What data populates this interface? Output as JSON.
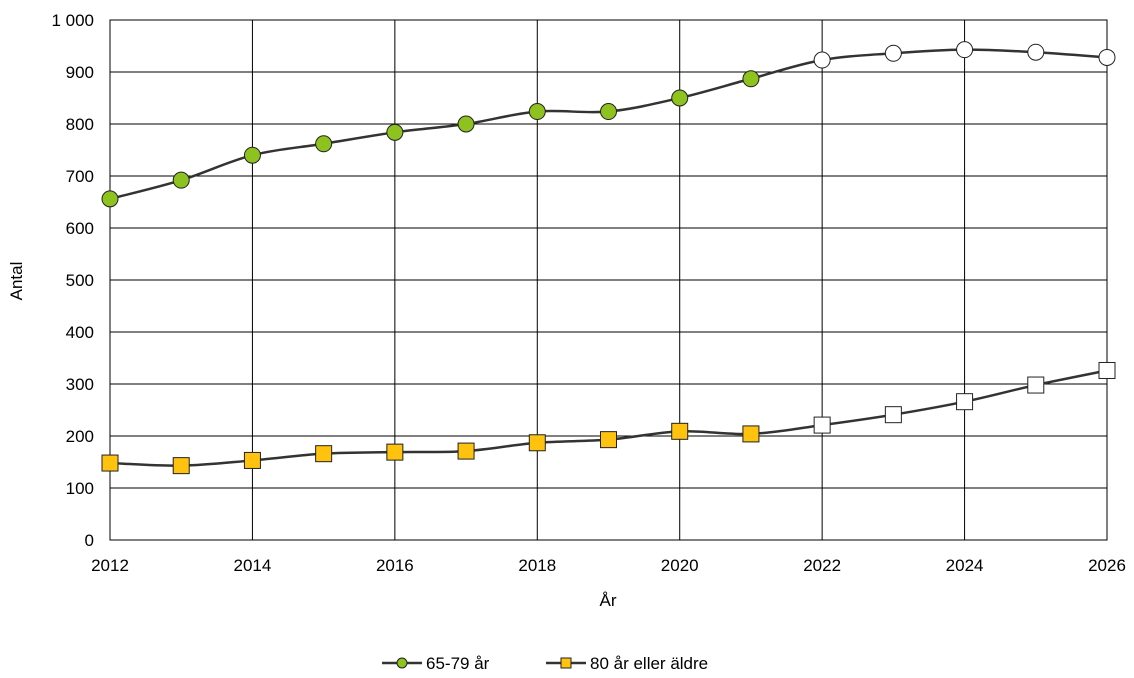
{
  "chart_data": {
    "type": "line",
    "title": "",
    "xlabel": "År",
    "ylabel": "Antal",
    "xlim": [
      2012,
      2026
    ],
    "ylim": [
      0,
      1000
    ],
    "x_ticks": [
      2012,
      2014,
      2016,
      2018,
      2020,
      2022,
      2024,
      2026
    ],
    "y_ticks": [
      0,
      100,
      200,
      300,
      400,
      500,
      600,
      700,
      800,
      900,
      1000
    ],
    "y_tick_labels": [
      "0",
      "100",
      "200",
      "300",
      "400",
      "500",
      "600",
      "700",
      "800",
      "900",
      "1 000"
    ],
    "x_tick_labels": [
      "2012",
      "2014",
      "2016",
      "2018",
      "2020",
      "2022",
      "2024",
      "2026"
    ],
    "grid": true,
    "legend_position": "bottom-center",
    "forecast_from": 2022,
    "x": [
      2012,
      2013,
      2014,
      2015,
      2016,
      2017,
      2018,
      2019,
      2020,
      2021,
      2022,
      2023,
      2024,
      2025,
      2026
    ],
    "series": [
      {
        "name": "65-79 år",
        "marker": "circle",
        "color": "#8dc21f",
        "values": [
          656,
          692,
          740,
          762,
          784,
          800,
          824,
          824,
          850,
          887,
          923,
          936,
          943,
          938,
          928
        ]
      },
      {
        "name": "80 år eller äldre",
        "marker": "square",
        "color": "#ffc20e",
        "values": [
          148,
          143,
          153,
          166,
          169,
          171,
          187,
          193,
          209,
          204,
          221,
          241,
          266,
          298,
          326
        ]
      }
    ]
  },
  "colors": {
    "line": "#333333",
    "grid": "#000000",
    "forecast_fill": "#ffffff",
    "marker_stroke": "#222222"
  }
}
